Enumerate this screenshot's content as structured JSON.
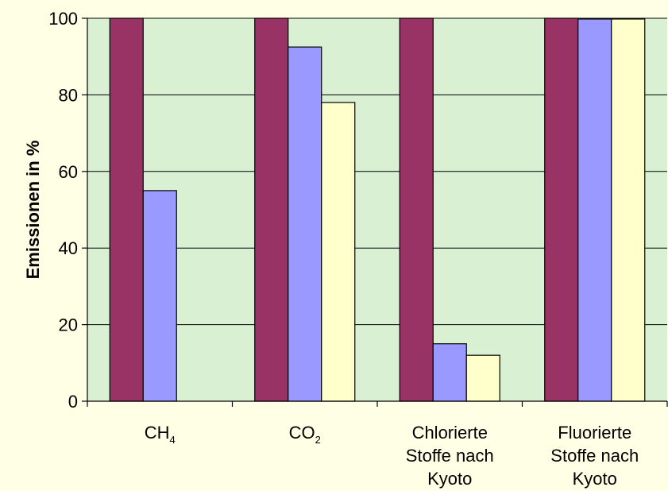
{
  "chart_data": {
    "type": "bar",
    "title": "",
    "xlabel": "",
    "ylabel": "Emissionen in %",
    "ylim": [
      0,
      100
    ],
    "yticks": [
      0,
      20,
      40,
      60,
      80,
      100
    ],
    "grid": true,
    "legend": "none",
    "categories": [
      {
        "lines": [
          {
            "main": "CH",
            "sub": "4"
          }
        ]
      },
      {
        "lines": [
          {
            "main": "CO",
            "sub": "2"
          }
        ]
      },
      {
        "lines": [
          {
            "main": "Chlorierte"
          },
          {
            "main": "Stoffe nach"
          },
          {
            "main": "Kyoto"
          }
        ]
      },
      {
        "lines": [
          {
            "main": "Fluorierte"
          },
          {
            "main": "Stoffe nach"
          },
          {
            "main": "Kyoto"
          }
        ]
      }
    ],
    "series": [
      {
        "values": [
          100,
          100,
          100,
          100
        ],
        "color": "#993366"
      },
      {
        "values": [
          55,
          92.5,
          15,
          99.8
        ],
        "color": "#9999FF"
      },
      {
        "values": [
          0,
          78,
          12,
          99.8
        ],
        "color": "#FFFFCC"
      }
    ],
    "plot_background": "#D9F0D3"
  }
}
